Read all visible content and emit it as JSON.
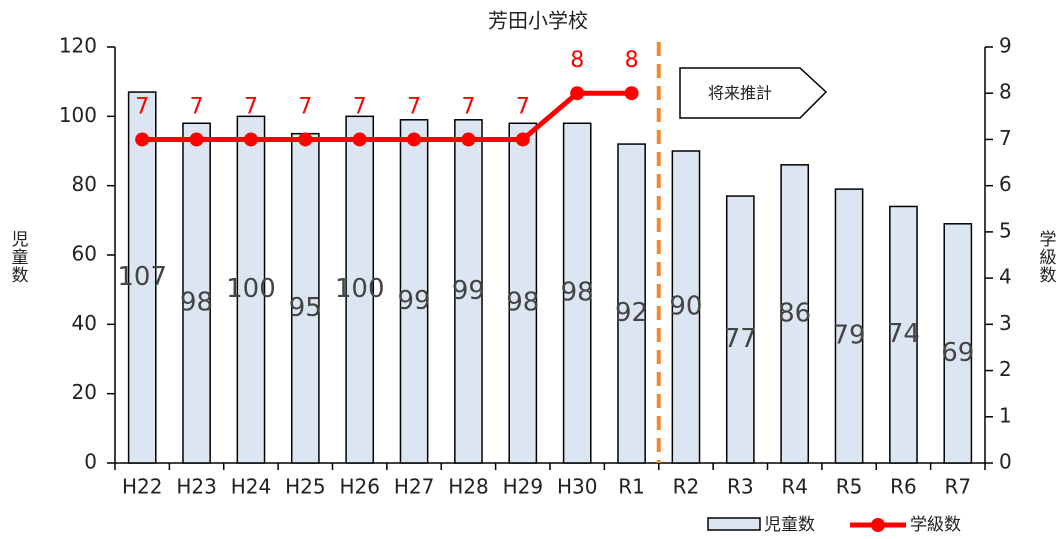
{
  "chart_data": {
    "type": "combo",
    "title": "芳田小学校",
    "categories": [
      "H22",
      "H23",
      "H24",
      "H25",
      "H26",
      "H27",
      "H28",
      "H29",
      "H30",
      "R1",
      "R2",
      "R3",
      "R4",
      "R5",
      "R6",
      "R7"
    ],
    "series": [
      {
        "name": "児童数",
        "type": "bar",
        "color": "#dce6f2",
        "values": [
          107,
          98,
          100,
          95,
          100,
          99,
          99,
          98,
          98,
          92,
          90,
          77,
          86,
          79,
          74,
          69
        ]
      },
      {
        "name": "学級数",
        "type": "line",
        "axis": "y2",
        "color": "#ff0000",
        "values": [
          7,
          7,
          7,
          7,
          7,
          7,
          7,
          7,
          8,
          8,
          null,
          null,
          null,
          null,
          null,
          null
        ]
      }
    ],
    "ylabel": "児童数",
    "y2label": "学級数",
    "ylim": [
      0,
      120
    ],
    "yticks": [
      0,
      20,
      40,
      60,
      80,
      100,
      120
    ],
    "y2lim": [
      0,
      9
    ],
    "y2ticks": [
      0,
      1,
      2,
      3,
      4,
      5,
      6,
      7,
      8,
      9
    ],
    "annotation": "将来推計",
    "legend": "bottom-right"
  }
}
